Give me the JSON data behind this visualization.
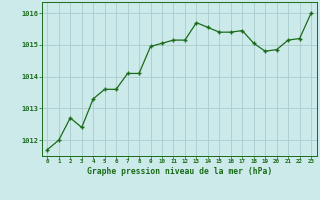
{
  "x": [
    0,
    1,
    2,
    3,
    4,
    5,
    6,
    7,
    8,
    9,
    10,
    11,
    12,
    13,
    14,
    15,
    16,
    17,
    18,
    19,
    20,
    21,
    22,
    23
  ],
  "y": [
    1011.7,
    1012.0,
    1012.7,
    1012.4,
    1013.3,
    1013.6,
    1013.6,
    1014.1,
    1014.1,
    1014.95,
    1015.05,
    1015.15,
    1015.15,
    1015.7,
    1015.55,
    1015.4,
    1015.4,
    1015.45,
    1015.05,
    1014.8,
    1014.85,
    1015.15,
    1015.2,
    1016.0
  ],
  "line_color": "#1a6b1a",
  "marker_color": "#1a6b1a",
  "bg_color": "#cceaea",
  "grid_color": "#aacccc",
  "xlabel": "Graphe pression niveau de la mer (hPa)",
  "xlabel_color": "#1a6b1a",
  "tick_color": "#1a6b1a",
  "ylim": [
    1011.5,
    1016.35
  ],
  "yticks": [
    1012,
    1013,
    1014,
    1015,
    1016
  ],
  "xticks": [
    0,
    1,
    2,
    3,
    4,
    5,
    6,
    7,
    8,
    9,
    10,
    11,
    12,
    13,
    14,
    15,
    16,
    17,
    18,
    19,
    20,
    21,
    22,
    23
  ]
}
